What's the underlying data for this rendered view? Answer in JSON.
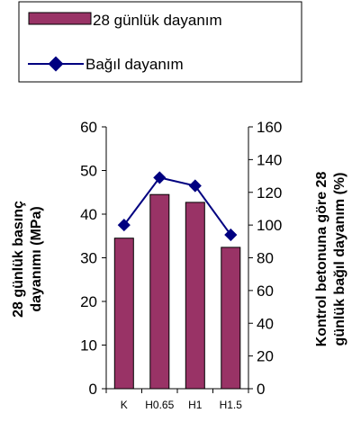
{
  "chart_data": {
    "type": "bar",
    "categories": [
      "K",
      "H0.65",
      "H1",
      "H1.5"
    ],
    "series": [
      {
        "name": "28 günlük dayanım",
        "kind": "bar",
        "axis": "left",
        "values": [
          34.5,
          44.5,
          42.7,
          32.4
        ],
        "color": "#993366"
      },
      {
        "name": "Bağıl dayanım",
        "kind": "line",
        "axis": "right",
        "values": [
          100,
          129,
          124,
          94
        ],
        "color": "#000080"
      }
    ],
    "ylabel": "28 günlük basınç\ndayanımı (MPa)",
    "y2label": "Kontrol betonuna göre 28\ngünlük bağıl dayanım (%)",
    "ylim": [
      0,
      60
    ],
    "y2lim": [
      0,
      160
    ],
    "yticks": [
      0,
      10,
      20,
      30,
      40,
      50,
      60
    ],
    "y2ticks": [
      0,
      20,
      40,
      60,
      80,
      100,
      120,
      140,
      160
    ],
    "grid": false,
    "legend_position": "top"
  }
}
